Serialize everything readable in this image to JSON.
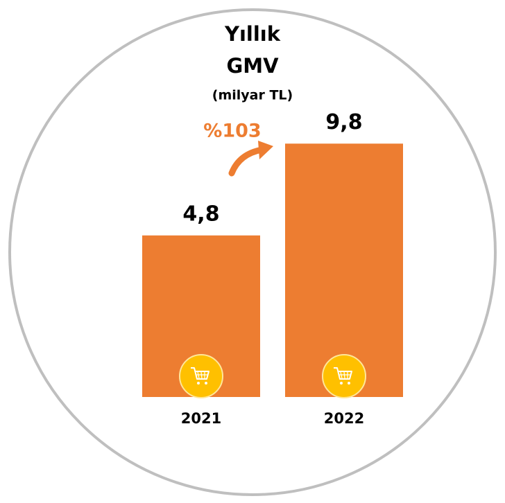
{
  "chart_data": {
    "type": "bar",
    "title": "Yıllık GMV",
    "subtitle": "(milyar TL)",
    "categories": [
      "2021",
      "2022"
    ],
    "values": [
      4.8,
      9.8
    ],
    "value_labels": [
      "4,8",
      "9,8"
    ],
    "color": "#ED7D31",
    "ylim": [
      -4,
      10
    ],
    "annotation": "%103",
    "annotation_color": "#ED7D31"
  }
}
